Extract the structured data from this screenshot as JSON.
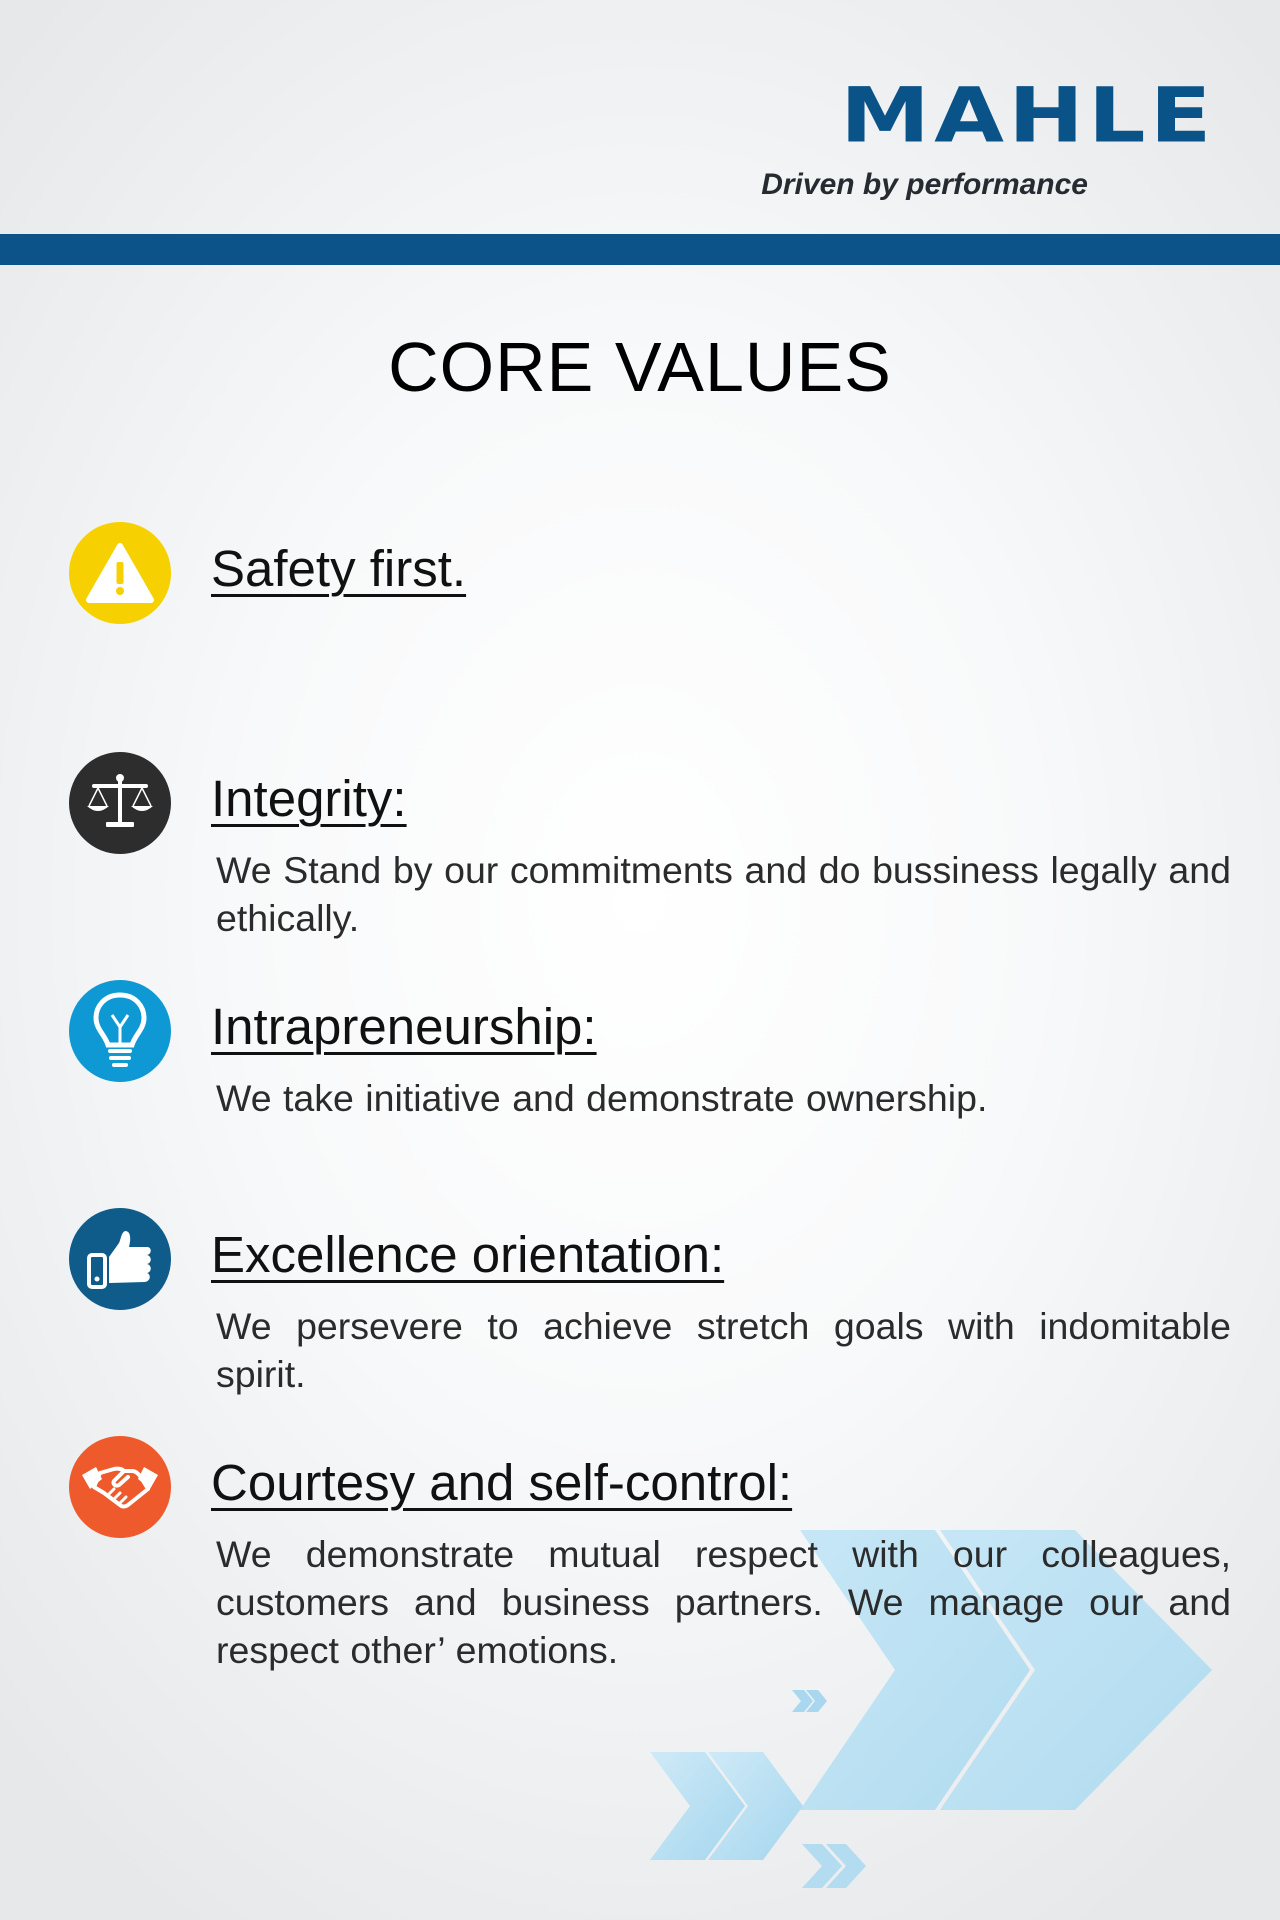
{
  "logo": {
    "brand": "MAHLE",
    "tagline": "Driven by performance",
    "brand_color": "#0a5389"
  },
  "page_title": "CORE VALUES",
  "values": [
    {
      "icon": "warning-icon",
      "icon_color": "#f7d000",
      "heading": "Safety first.",
      "text": ""
    },
    {
      "icon": "scales-icon",
      "icon_color": "#2d2d2d",
      "heading": "Integrity:",
      "text": "We Stand by our  commitments and do bussiness legally and ethically."
    },
    {
      "icon": "lightbulb-icon",
      "icon_color": "#0e99d4",
      "heading": "Intrapreneurship:",
      "text": "We take initiative and demonstrate ownership."
    },
    {
      "icon": "thumbs-up-icon",
      "icon_color": "#0f5b8a",
      "heading": "Excellence orientation:",
      "text": "We persevere to achieve stretch  goals with  indomitable spirit."
    },
    {
      "icon": "handshake-icon",
      "icon_color": "#ee5a2b",
      "heading": "Courtesy and self-control:",
      "text": "We  demonstrate  mutual  respect  with  our  colleagues, customers and business  partners. We  manage  our and respect other’ emotions."
    }
  ],
  "decoration": {
    "chevron_color": "#9fd4ef"
  }
}
